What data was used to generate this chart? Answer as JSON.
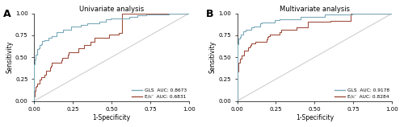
{
  "panel_A": {
    "title": "Univariate analysis",
    "gls_auc": "0.8673",
    "exc_auc": "0.6831",
    "gls_color": "#7baaba",
    "exc_color": "#a05040",
    "diag_color": "#c8c8c8"
  },
  "panel_B": {
    "title": "Multivariate analysis",
    "gls_auc": "0.9178",
    "exc_auc": "0.8284",
    "gls_color": "#7baaba",
    "exc_color": "#a05040",
    "diag_color": "#c8c8c8"
  },
  "xlabel": "1-Specificity",
  "ylabel": "Sensitivity",
  "label_gls": "GLS",
  "label_exc": "E/c’",
  "figsize": [
    5.0,
    1.58
  ],
  "dpi": 100
}
